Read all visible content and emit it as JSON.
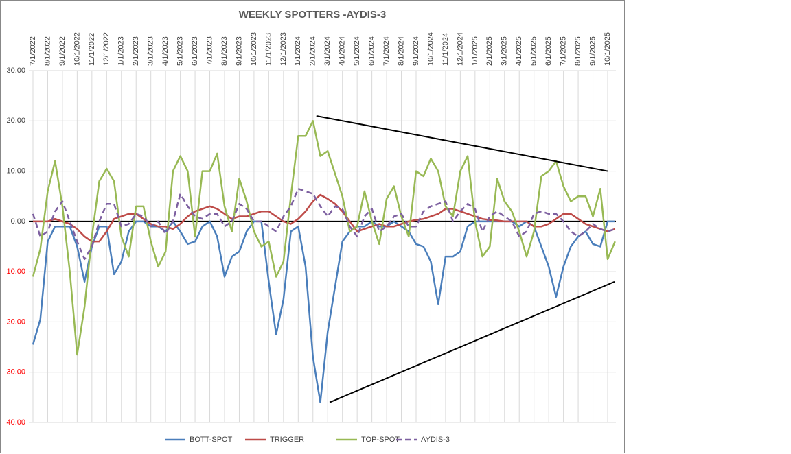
{
  "chart_data": {
    "type": "line",
    "title": "WEEKLY SPOTTERS -AYDIS-3",
    "categories": [
      "7/1/2022",
      null,
      "8/1/2022",
      null,
      "9/1/2022",
      null,
      "10/1/2022",
      null,
      "11/1/2022",
      null,
      "12/1/2022",
      null,
      "1/1/2023",
      null,
      "2/1/2023",
      null,
      "3/1/2023",
      null,
      "4/1/2023",
      null,
      "5/1/2023",
      null,
      "6/1/2023",
      null,
      "7/1/2023",
      null,
      "8/1/2023",
      null,
      "9/1/2023",
      null,
      "10/1/2023",
      null,
      "11/1/2023",
      null,
      "12/1/2023",
      null,
      "1/1/2024",
      null,
      "2/1/2024",
      null,
      "3/1/2024",
      null,
      "4/1/2024",
      null,
      "5/1/2024",
      null,
      "6/1/2024",
      null,
      "7/1/2024",
      null,
      "8/1/2024",
      null,
      "9/1/2024",
      null,
      "10/1/2024",
      null,
      "11/1/2024",
      null,
      "12/1/2024",
      null,
      "1/1/2025",
      null,
      "2/1/2025",
      null,
      "3/1/2025",
      null,
      "4/1/2025",
      null,
      "5/1/2025",
      null,
      "6/1/2025",
      null,
      "7/1/2025",
      null,
      "8/1/2025",
      null,
      "9/1/2025",
      null,
      "10/1/2025",
      null
    ],
    "series": [
      {
        "name": "BOTT-SPOT",
        "color": "#4a7ebb",
        "dash": false,
        "values": [
          -24.5,
          -19.5,
          -4,
          -1,
          -1,
          -1,
          -5,
          -12,
          -5,
          -1,
          -1,
          -10.5,
          -8,
          -2,
          0,
          0,
          -1,
          -1,
          -2,
          0,
          -2,
          -4.5,
          -4,
          -1,
          0,
          -3,
          -11,
          -7,
          -6,
          -2,
          0,
          0,
          -12,
          -22.5,
          -15.5,
          -2,
          -1,
          -9,
          -27,
          -36,
          -22,
          -13,
          -4,
          -2,
          -1,
          -1,
          0,
          -1,
          -1,
          0,
          -1,
          -2,
          -4.5,
          -5,
          -8,
          -16.5,
          -7,
          -7,
          -6,
          -1,
          0,
          0,
          0,
          0,
          0,
          0,
          -1,
          0,
          -1,
          -5,
          -9,
          -15,
          -9,
          -5,
          -3,
          -2,
          -4.5,
          -5,
          0,
          0
        ]
      },
      {
        "name": "TRIGGER",
        "color": "#be4b48",
        "dash": false,
        "values": [
          0,
          0,
          0,
          0.5,
          0,
          -0.5,
          -1.5,
          -3,
          -4,
          -4,
          -2,
          0.5,
          1,
          1.5,
          1.5,
          0.5,
          -0.5,
          -1,
          -1,
          -1.5,
          -0.5,
          1,
          2,
          2.5,
          3,
          2.5,
          1.5,
          0.5,
          1,
          1,
          1.5,
          2,
          2,
          1,
          0,
          -0.5,
          0.5,
          2,
          4,
          5.3,
          4.5,
          3.5,
          2,
          0,
          -2,
          -1.5,
          -1,
          -0.5,
          -1,
          -1,
          -0.5,
          0,
          0.3,
          0.5,
          1,
          1.5,
          2.5,
          2.5,
          2,
          1.5,
          1,
          0.5,
          0.3,
          0.2,
          0,
          0,
          0,
          0,
          -1,
          -1,
          -0.5,
          0.5,
          1.5,
          1.5,
          0.5,
          -0.5,
          -1,
          -1.5,
          -2,
          -1.5
        ]
      },
      {
        "name": "TOP-SPOT",
        "color": "#98b954",
        "dash": false,
        "values": [
          -11,
          -5.5,
          6,
          12,
          3,
          -10,
          -26.5,
          -17,
          -3,
          8,
          10.5,
          8,
          -3,
          -7,
          3,
          3,
          -4,
          -9,
          -6,
          10,
          13,
          10,
          -3,
          10,
          10,
          13.5,
          3,
          -2,
          8.5,
          4,
          -2,
          -5,
          -4,
          -11,
          -8,
          5,
          17,
          17,
          20,
          13,
          14,
          9.5,
          5,
          -2,
          -1,
          6,
          0,
          -4.5,
          4.5,
          7,
          1,
          -3,
          10,
          9,
          12.5,
          10,
          3,
          1,
          10,
          13,
          0,
          -7,
          -5,
          8.5,
          4,
          2,
          -2,
          -7,
          -2,
          9,
          10,
          12,
          7,
          4,
          5,
          5,
          1,
          6.5,
          -7.5,
          -4
        ]
      },
      {
        "name": "AYDIS-3",
        "color": "#7d60a0",
        "dash": true,
        "values": [
          1.5,
          -3,
          -2,
          2,
          4,
          0,
          -4,
          -7.5,
          -5,
          0,
          3.5,
          3.5,
          -1,
          -0.5,
          1.5,
          1,
          -1,
          0,
          -2.5,
          0,
          5.5,
          3,
          1,
          0.5,
          1.5,
          1.5,
          -1,
          0,
          3.5,
          2.5,
          0,
          0,
          -1,
          -2,
          1,
          3,
          6.5,
          6,
          5.5,
          3,
          1,
          3,
          2.5,
          -1,
          -3,
          1,
          2.5,
          -2,
          -1,
          1,
          1.5,
          -1,
          -1,
          2,
          3,
          3.5,
          4,
          0,
          2,
          3.5,
          2.5,
          -2,
          1,
          2,
          1,
          0,
          -3,
          -2,
          1.5,
          2,
          1.5,
          1.5,
          0,
          -2,
          -3,
          -2,
          -0.5,
          -1.5,
          -2,
          -1.5
        ]
      }
    ],
    "ylim": [
      -40,
      30
    ],
    "yticks": [
      {
        "value": -40,
        "label": "40.00"
      },
      {
        "value": -30,
        "label": "30.00"
      },
      {
        "value": -20,
        "label": "20.00"
      },
      {
        "value": -10,
        "label": "10.00"
      },
      {
        "value": 0,
        "label": "0.00"
      },
      {
        "value": 10,
        "label": "10.00"
      },
      {
        "value": 20,
        "label": "20.00"
      },
      {
        "value": 30,
        "label": "30.00"
      }
    ],
    "negative_label_color": "#ff0000",
    "grid": true,
    "legend": "bottom",
    "trend_lines": [
      {
        "color": "#000000",
        "x": [
          "2/8/2024",
          "10/1/2025"
        ],
        "y": [
          21,
          10
        ]
      },
      {
        "color": "#000000",
        "x": [
          "3/5/2024",
          "10/15/2025"
        ],
        "y": [
          -36,
          -12
        ]
      }
    ]
  }
}
